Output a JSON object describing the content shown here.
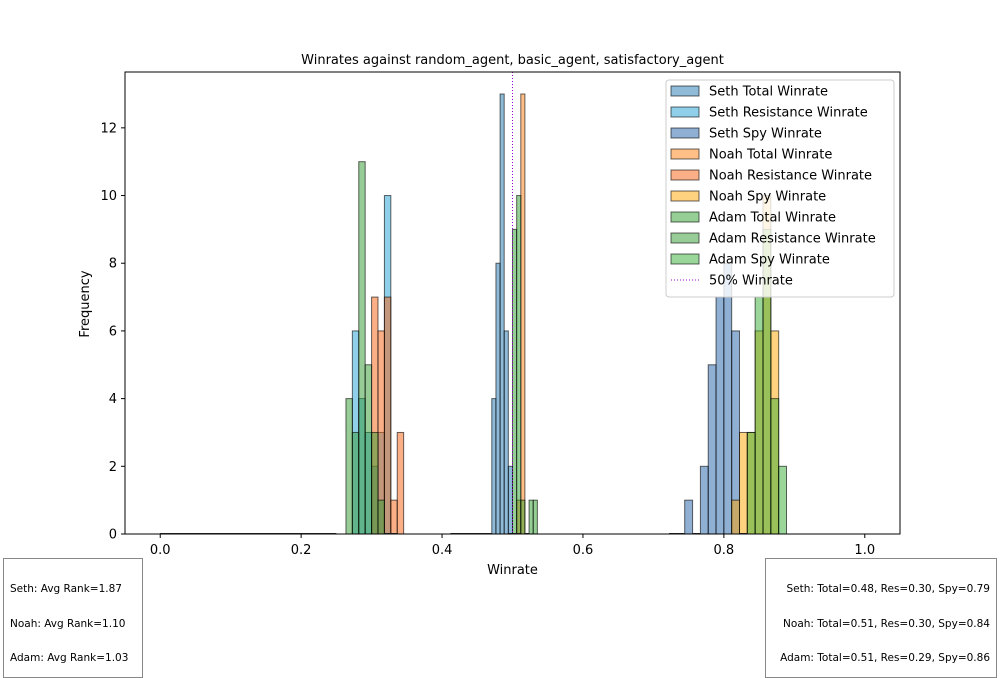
{
  "chart_data": {
    "type": "histogram",
    "title": "Winrates against random_agent, basic_agent, satisfactory_agent",
    "xlabel": "Winrate",
    "ylabel": "Frequency",
    "xlim": [
      -0.05,
      1.05
    ],
    "ylim": [
      0,
      13.65
    ],
    "xticks": [
      "0.0",
      "0.2",
      "0.4",
      "0.6",
      "0.8",
      "1.0"
    ],
    "xtick_values": [
      0.0,
      0.2,
      0.4,
      0.6,
      0.8,
      1.0
    ],
    "yticks": [
      "0",
      "2",
      "4",
      "6",
      "8",
      "10",
      "12"
    ],
    "ytick_values": [
      0,
      2,
      4,
      6,
      8,
      10,
      12
    ],
    "grid": false,
    "legend_location": "top-right",
    "reference_line": {
      "label": "50% Winrate",
      "x": 0.5,
      "color": "#9400d3",
      "style": "dotted"
    },
    "series": [
      {
        "name": "Seth Total Winrate",
        "color": "#1f77b4",
        "alpha": 0.5,
        "bins": [
          [
            0.0,
            0.0588,
            0
          ],
          [
            0.4118,
            0.4706,
            0
          ],
          [
            0.4706,
            0.4765,
            4
          ],
          [
            0.4765,
            0.4824,
            8
          ],
          [
            0.4824,
            0.4882,
            13
          ],
          [
            0.4882,
            0.4941,
            6
          ],
          [
            0.4941,
            0.5,
            2
          ],
          [
            0.5,
            0.5059,
            0
          ],
          [
            0.5059,
            0.5118,
            0
          ]
        ]
      },
      {
        "name": "Seth Resistance Winrate",
        "color": "#1f9fd4",
        "alpha": 0.5,
        "bins": [
          [
            0.0,
            0.25,
            0
          ],
          [
            0.2727,
            0.2818,
            6
          ],
          [
            0.2818,
            0.2909,
            4
          ],
          [
            0.2909,
            0.3,
            3
          ],
          [
            0.3,
            0.3091,
            2
          ],
          [
            0.3091,
            0.3182,
            3
          ],
          [
            0.3182,
            0.3273,
            10
          ],
          [
            0.3273,
            0.3364,
            0
          ]
        ]
      },
      {
        "name": "Seth Spy Winrate",
        "color": "#1f5fa8",
        "alpha": 0.5,
        "bins": [
          [
            0.7222,
            0.7444,
            0
          ],
          [
            0.7444,
            0.7556,
            1
          ],
          [
            0.7556,
            0.7667,
            0
          ],
          [
            0.7667,
            0.7778,
            2
          ],
          [
            0.7778,
            0.7889,
            5
          ],
          [
            0.7889,
            0.8,
            7
          ],
          [
            0.8,
            0.8111,
            8
          ],
          [
            0.8111,
            0.8222,
            6
          ],
          [
            0.8222,
            0.8333,
            0
          ]
        ]
      },
      {
        "name": "Noah Total Winrate",
        "color": "#ff7f0e",
        "alpha": 0.5,
        "bins": [
          [
            0.4941,
            0.5,
            0
          ],
          [
            0.5,
            0.5059,
            0
          ],
          [
            0.5059,
            0.5118,
            1
          ],
          [
            0.5118,
            0.5176,
            13
          ],
          [
            0.5176,
            0.5235,
            0
          ]
        ]
      },
      {
        "name": "Noah Resistance Winrate",
        "color": "#f7600e",
        "alpha": 0.5,
        "bins": [
          [
            0.3,
            0.3091,
            7
          ],
          [
            0.3091,
            0.3182,
            6
          ],
          [
            0.3182,
            0.3273,
            7
          ],
          [
            0.3273,
            0.3364,
            1
          ],
          [
            0.3364,
            0.3455,
            3
          ]
        ]
      },
      {
        "name": "Noah Spy Winrate",
        "color": "#ffa500",
        "alpha": 0.5,
        "bins": [
          [
            0.8111,
            0.8222,
            1
          ],
          [
            0.8222,
            0.8333,
            3
          ],
          [
            0.8333,
            0.8444,
            3
          ],
          [
            0.8444,
            0.8556,
            6
          ],
          [
            0.8556,
            0.8667,
            10
          ],
          [
            0.8667,
            0.8778,
            6
          ]
        ]
      },
      {
        "name": "Adam Total Winrate",
        "color": "#2ca02c",
        "alpha": 0.5,
        "bins": [
          [
            0.5,
            0.5059,
            9
          ],
          [
            0.5059,
            0.5118,
            10
          ],
          [
            0.5118,
            0.5176,
            1
          ],
          [
            0.5176,
            0.5235,
            0
          ],
          [
            0.5235,
            0.5294,
            1
          ],
          [
            0.5294,
            0.5353,
            1
          ]
        ]
      },
      {
        "name": "Adam Resistance Winrate",
        "color": "#2f9a2f",
        "alpha": 0.5,
        "bins": [
          [
            0.2636,
            0.2727,
            4
          ],
          [
            0.2727,
            0.2818,
            3
          ],
          [
            0.2818,
            0.2909,
            11
          ],
          [
            0.2909,
            0.3,
            5
          ],
          [
            0.3,
            0.3091,
            3
          ],
          [
            0.3091,
            0.3182,
            1
          ],
          [
            0.3182,
            0.3273,
            0
          ]
        ]
      },
      {
        "name": "Adam Spy Winrate",
        "color": "#35ad35",
        "alpha": 0.5,
        "bins": [
          [
            0.8333,
            0.8444,
            3
          ],
          [
            0.8444,
            0.8556,
            7
          ],
          [
            0.8556,
            0.8667,
            9
          ],
          [
            0.8667,
            0.8778,
            4
          ],
          [
            0.8778,
            0.8889,
            2
          ]
        ]
      }
    ]
  },
  "notes": {
    "left": [
      "Seth: Avg Rank=1.87",
      "Noah: Avg Rank=1.10",
      "Adam: Avg Rank=1.03"
    ],
    "right": [
      "Seth: Total=0.48, Res=0.30, Spy=0.79",
      "Noah: Total=0.51, Res=0.30, Spy=0.84",
      "Adam: Total=0.51, Res=0.29, Spy=0.86"
    ]
  }
}
